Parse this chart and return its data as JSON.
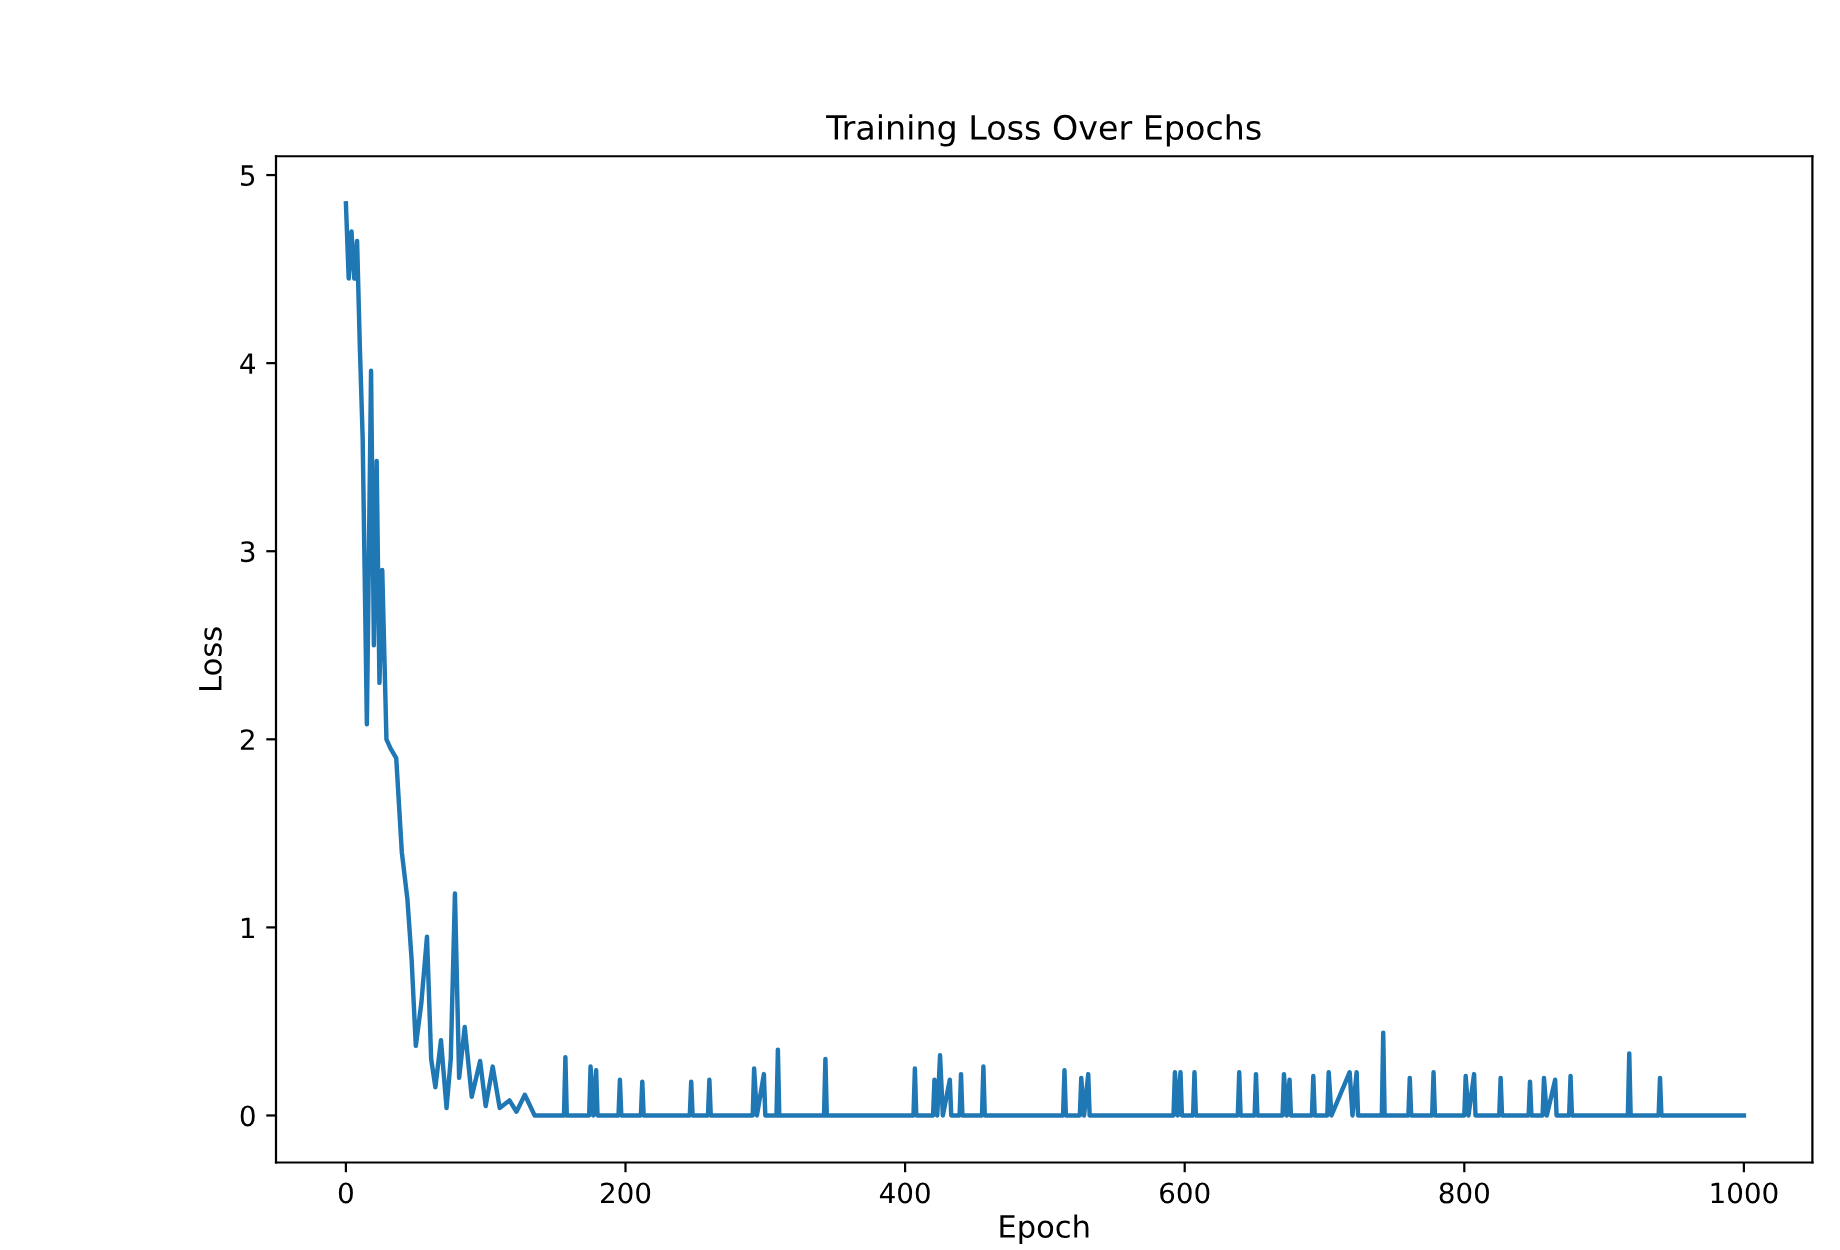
{
  "chart_data": {
    "type": "line",
    "title": "Training Loss Over Epochs",
    "xlabel": "Epoch",
    "ylabel": "Loss",
    "xlim": [
      -50,
      1049
    ],
    "ylim": [
      -0.25,
      5.1
    ],
    "xticks": [
      0,
      200,
      400,
      600,
      800,
      1000
    ],
    "yticks": [
      0,
      1,
      2,
      3,
      4,
      5
    ],
    "grid": false,
    "legend": false,
    "series": [
      {
        "color": "#1f77b4",
        "x": [
          0,
          2,
          4,
          6,
          8,
          10,
          12,
          15,
          18,
          20,
          22,
          24,
          26,
          29,
          32,
          36,
          40,
          44,
          47,
          50,
          54,
          58,
          61,
          64,
          68,
          72,
          75,
          78,
          81,
          85,
          90,
          96,
          100,
          105,
          110,
          117,
          122,
          128,
          135,
          156,
          157,
          158,
          174,
          175,
          177,
          179,
          180,
          195,
          196,
          197,
          211,
          212,
          213,
          246,
          247,
          248,
          259,
          260,
          261,
          291,
          292,
          294,
          299,
          300,
          308,
          309,
          310,
          342,
          343,
          344,
          406,
          407,
          408,
          420,
          421,
          423,
          425,
          427,
          432,
          433,
          439,
          440,
          441,
          455,
          456,
          457,
          513,
          514,
          515,
          525,
          526,
          528,
          531,
          532,
          592,
          593,
          595,
          597,
          598,
          606,
          607,
          608,
          638,
          639,
          640,
          650,
          651,
          652,
          670,
          671,
          673,
          675,
          676,
          691,
          692,
          693,
          702,
          703,
          705,
          718,
          720,
          723,
          724,
          741,
          742,
          743,
          760,
          761,
          762,
          777,
          778,
          779,
          800,
          801,
          803,
          807,
          808,
          825,
          826,
          827,
          846,
          847,
          848,
          856,
          857,
          859,
          865,
          866,
          875,
          876,
          877,
          917,
          918,
          919,
          939,
          940,
          941,
          1000
        ],
        "values": [
          4.85,
          4.45,
          4.7,
          4.45,
          4.65,
          4.08,
          3.6,
          2.08,
          3.96,
          2.5,
          3.48,
          2.3,
          2.9,
          2.0,
          1.95,
          1.9,
          1.4,
          1.15,
          0.83,
          0.37,
          0.6,
          0.95,
          0.3,
          0.15,
          0.4,
          0.04,
          0.3,
          1.18,
          0.2,
          0.47,
          0.1,
          0.29,
          0.05,
          0.26,
          0.04,
          0.08,
          0.02,
          0.11,
          0.0,
          0.0,
          0.31,
          0.0,
          0.0,
          0.26,
          0.0,
          0.24,
          0.0,
          0.0,
          0.19,
          0.0,
          0.0,
          0.18,
          0.0,
          0.0,
          0.18,
          0.0,
          0.0,
          0.19,
          0.0,
          0.0,
          0.25,
          0.0,
          0.22,
          0.0,
          0.0,
          0.35,
          0.0,
          0.0,
          0.3,
          0.0,
          0.0,
          0.25,
          0.0,
          0.0,
          0.19,
          0.0,
          0.32,
          0.0,
          0.19,
          0.0,
          0.0,
          0.22,
          0.0,
          0.0,
          0.26,
          0.0,
          0.0,
          0.24,
          0.0,
          0.0,
          0.2,
          0.0,
          0.22,
          0.0,
          0.0,
          0.23,
          0.0,
          0.23,
          0.0,
          0.0,
          0.23,
          0.0,
          0.0,
          0.23,
          0.0,
          0.0,
          0.22,
          0.0,
          0.0,
          0.22,
          0.0,
          0.19,
          0.0,
          0.0,
          0.21,
          0.0,
          0.0,
          0.23,
          0.0,
          0.23,
          0.0,
          0.23,
          0.0,
          0.0,
          0.44,
          0.0,
          0.0,
          0.2,
          0.0,
          0.0,
          0.23,
          0.0,
          0.0,
          0.21,
          0.0,
          0.22,
          0.0,
          0.0,
          0.2,
          0.0,
          0.0,
          0.18,
          0.0,
          0.0,
          0.2,
          0.0,
          0.19,
          0.0,
          0.0,
          0.21,
          0.0,
          0.0,
          0.33,
          0.0,
          0.0,
          0.2,
          0.0,
          0.0
        ]
      }
    ]
  }
}
